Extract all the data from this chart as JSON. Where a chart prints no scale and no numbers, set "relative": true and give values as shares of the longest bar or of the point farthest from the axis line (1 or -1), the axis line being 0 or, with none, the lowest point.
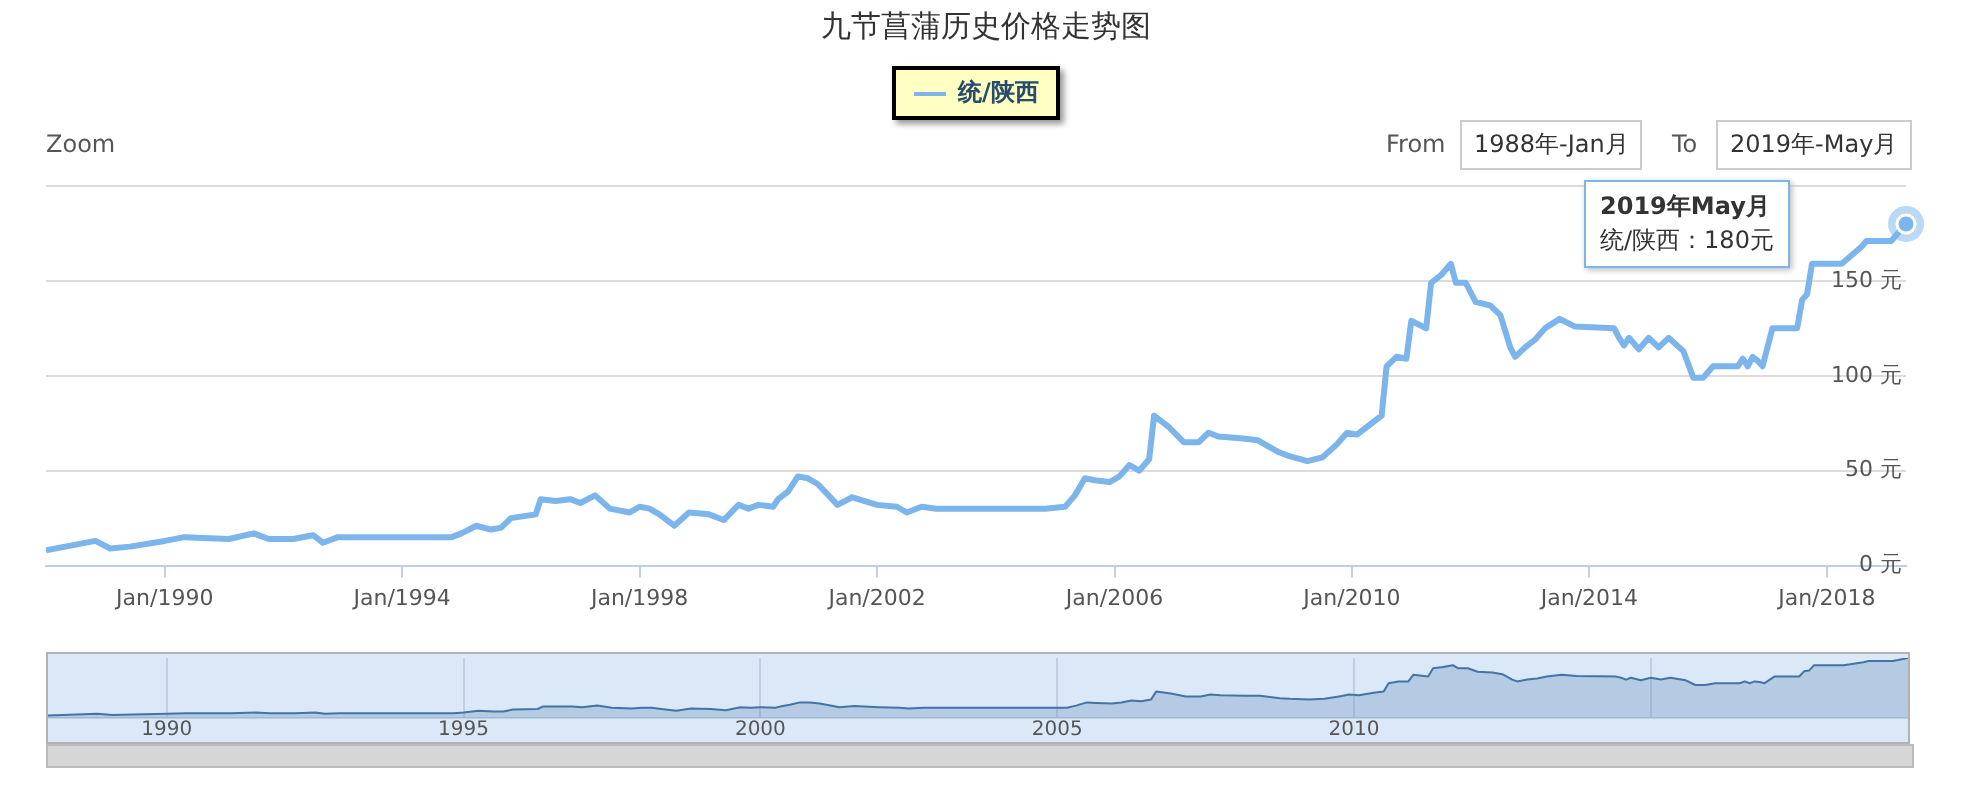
{
  "chart_data": [
    {
      "type": "line",
      "title": "九节菖蒲历史价格走势图",
      "legend": "top",
      "annotations": [
        "Zoom",
        "From",
        "1988年-Jan月",
        "To",
        "2019年-May月",
        "2019年May月",
        "统/陕西：180元"
      ],
      "x": [
        "1988-01",
        "1988-11",
        "1989-02",
        "1989-06",
        "1990-01",
        "1990-05",
        "1991-02",
        "1991-07",
        "1991-10",
        "1992-03",
        "1992-07",
        "1992-09",
        "1992-12",
        "1994-01",
        "1994-11",
        "1995-01",
        "1995-04",
        "1995-07",
        "1995-09",
        "1995-11",
        "1996-04",
        "1996-05",
        "1996-08",
        "1996-11",
        "1997-01",
        "1997-04",
        "1997-07",
        "1997-11",
        "1998-01",
        "1998-03",
        "1998-05",
        "1998-08",
        "1998-11",
        "1999-03",
        "1999-06",
        "1999-09",
        "1999-11",
        "2000-01",
        "2000-04",
        "2000-05",
        "2000-07",
        "2000-09",
        "2000-11",
        "2001-01",
        "2001-05",
        "2001-08",
        "2002-01",
        "2002-05",
        "2002-07",
        "2002-10",
        "2003-01",
        "2004-11",
        "2005-03",
        "2005-05",
        "2005-07",
        "2005-09",
        "2005-12",
        "2006-02",
        "2006-04",
        "2006-06",
        "2006-08",
        "2006-09",
        "2006-12",
        "2007-03",
        "2007-06",
        "2007-08",
        "2007-10",
        "2008-03",
        "2008-06",
        "2008-08",
        "2008-10",
        "2008-12",
        "2009-04",
        "2009-07",
        "2009-10",
        "2009-12",
        "2010-02",
        "2010-05",
        "2010-07",
        "2010-08",
        "2010-10",
        "2010-12",
        "2011-01",
        "2011-04",
        "2011-05",
        "2011-07",
        "2011-09",
        "2011-10",
        "2011-12",
        "2012-02",
        "2012-05",
        "2012-07",
        "2012-09",
        "2012-10",
        "2012-12",
        "2013-02",
        "2013-04",
        "2013-07",
        "2013-10",
        "2014-06",
        "2014-07",
        "2014-08",
        "2014-09",
        "2014-11",
        "2015-01",
        "2015-03",
        "2015-05",
        "2015-08",
        "2015-10",
        "2015-12",
        "2016-02",
        "2016-07",
        "2016-08",
        "2016-09",
        "2016-10",
        "2016-11",
        "2016-12",
        "2017-02",
        "2017-07",
        "2017-08",
        "2017-09",
        "2017-10",
        "2018-04",
        "2018-08",
        "2018-09",
        "2019-02",
        "2019-05"
      ],
      "series": [
        {
          "name": "统/陕西",
          "color": "#7cb5ec",
          "values": [
            8,
            13,
            9,
            10,
            13,
            15,
            14,
            17,
            14,
            14,
            16,
            12,
            15,
            15,
            15,
            17,
            21,
            19,
            20,
            25,
            27,
            35,
            34,
            35,
            33,
            37,
            30,
            28,
            31,
            30,
            27,
            21,
            28,
            27,
            24,
            32,
            30,
            32,
            31,
            35,
            39,
            47,
            46,
            43,
            32,
            36,
            32,
            31,
            28,
            31,
            30,
            30,
            31,
            37,
            46,
            45,
            44,
            47,
            53,
            50,
            56,
            79,
            73,
            65,
            65,
            70,
            68,
            67,
            66,
            63,
            60,
            58,
            55,
            57,
            64,
            70,
            69,
            75,
            79,
            105,
            110,
            109,
            129,
            125,
            149,
            153,
            159,
            149,
            149,
            139,
            137,
            132,
            115,
            110,
            115,
            119,
            125,
            130,
            126,
            125,
            120,
            116,
            120,
            114,
            120,
            115,
            120,
            113,
            99,
            99,
            105,
            105,
            109,
            105,
            110,
            108,
            105,
            125,
            125,
            140,
            143,
            159,
            159,
            168,
            171,
            171,
            180
          ]
        }
      ],
      "xlim": [
        "1988-01",
        "2019-05"
      ],
      "xticks": [
        {
          "value": "1990-01",
          "label": "Jan/1990"
        },
        {
          "value": "1994-01",
          "label": "Jan/1994"
        },
        {
          "value": "1998-01",
          "label": "Jan/1998"
        },
        {
          "value": "2002-01",
          "label": "Jan/2002"
        },
        {
          "value": "2006-01",
          "label": "Jan/2006"
        },
        {
          "value": "2010-01",
          "label": "Jan/2010"
        },
        {
          "value": "2014-01",
          "label": "Jan/2014"
        },
        {
          "value": "2018-01",
          "label": "Jan/2018"
        }
      ],
      "ylim": [
        0,
        200
      ],
      "yticks": [
        {
          "value": 0,
          "label": "0 元"
        },
        {
          "value": 50,
          "label": "50 元"
        },
        {
          "value": 100,
          "label": "100 元"
        },
        {
          "value": 150,
          "label": "150 元"
        },
        {
          "value": 200,
          "label": null
        }
      ],
      "grid": "y",
      "marker": "none",
      "line_style": "solid"
    },
    {
      "type": "area",
      "x": [
        "1988-01",
        "1988-11",
        "1989-02",
        "1989-06",
        "1990-01",
        "1990-05",
        "1991-02",
        "1991-07",
        "1991-10",
        "1992-03",
        "1992-07",
        "1992-09",
        "1992-12",
        "1994-01",
        "1994-11",
        "1995-01",
        "1995-04",
        "1995-07",
        "1995-09",
        "1995-11",
        "1996-04",
        "1996-05",
        "1996-08",
        "1996-11",
        "1997-01",
        "1997-04",
        "1997-07",
        "1997-11",
        "1998-01",
        "1998-03",
        "1998-05",
        "1998-08",
        "1998-11",
        "1999-03",
        "1999-06",
        "1999-09",
        "1999-11",
        "2000-01",
        "2000-04",
        "2000-05",
        "2000-07",
        "2000-09",
        "2000-11",
        "2001-01",
        "2001-05",
        "2001-08",
        "2002-01",
        "2002-05",
        "2002-07",
        "2002-10",
        "2003-01",
        "2004-11",
        "2005-03",
        "2005-05",
        "2005-07",
        "2005-09",
        "2005-12",
        "2006-02",
        "2006-04",
        "2006-06",
        "2006-08",
        "2006-09",
        "2006-12",
        "2007-03",
        "2007-06",
        "2007-08",
        "2007-10",
        "2008-03",
        "2008-06",
        "2008-08",
        "2008-10",
        "2008-12",
        "2009-04",
        "2009-07",
        "2009-10",
        "2009-12",
        "2010-02",
        "2010-05",
        "2010-07",
        "2010-08",
        "2010-10",
        "2010-12",
        "2011-01",
        "2011-04",
        "2011-05",
        "2011-07",
        "2011-09",
        "2011-10",
        "2011-12",
        "2012-02",
        "2012-05",
        "2012-07",
        "2012-09",
        "2012-10",
        "2012-12",
        "2013-02",
        "2013-04",
        "2013-07",
        "2013-10",
        "2014-06",
        "2014-07",
        "2014-08",
        "2014-09",
        "2014-11",
        "2015-01",
        "2015-03",
        "2015-05",
        "2015-08",
        "2015-10",
        "2015-12",
        "2016-02",
        "2016-07",
        "2016-08",
        "2016-09",
        "2016-10",
        "2016-11",
        "2016-12",
        "2017-02",
        "2017-07",
        "2017-08",
        "2017-09",
        "2017-10",
        "2018-04",
        "2018-08",
        "2018-09",
        "2019-02",
        "2019-05"
      ],
      "series": [
        {
          "color": "#4572a7",
          "values": [
            0.04,
            0.07,
            0.05,
            0.06,
            0.07,
            0.08,
            0.08,
            0.09,
            0.08,
            0.08,
            0.09,
            0.07,
            0.08,
            0.08,
            0.08,
            0.09,
            0.12,
            0.11,
            0.11,
            0.14,
            0.15,
            0.19,
            0.19,
            0.19,
            0.18,
            0.21,
            0.17,
            0.16,
            0.17,
            0.17,
            0.15,
            0.12,
            0.16,
            0.15,
            0.13,
            0.18,
            0.17,
            0.18,
            0.17,
            0.19,
            0.22,
            0.26,
            0.26,
            0.24,
            0.18,
            0.2,
            0.18,
            0.17,
            0.16,
            0.17,
            0.17,
            0.17,
            0.17,
            0.21,
            0.26,
            0.25,
            0.24,
            0.26,
            0.29,
            0.28,
            0.31,
            0.44,
            0.41,
            0.36,
            0.36,
            0.39,
            0.38,
            0.37,
            0.37,
            0.35,
            0.33,
            0.32,
            0.31,
            0.32,
            0.36,
            0.39,
            0.38,
            0.42,
            0.44,
            0.58,
            0.61,
            0.61,
            0.72,
            0.69,
            0.83,
            0.85,
            0.88,
            0.83,
            0.83,
            0.77,
            0.76,
            0.73,
            0.64,
            0.61,
            0.64,
            0.66,
            0.69,
            0.72,
            0.7,
            0.69,
            0.67,
            0.64,
            0.67,
            0.63,
            0.67,
            0.64,
            0.67,
            0.63,
            0.55,
            0.55,
            0.58,
            0.58,
            0.61,
            0.58,
            0.61,
            0.6,
            0.58,
            0.69,
            0.69,
            0.78,
            0.79,
            0.88,
            0.88,
            0.93,
            0.95,
            0.95,
            1
          ]
        }
      ],
      "xlim": [
        "1988-01",
        "2019-05"
      ],
      "xticks": [
        {
          "value": "1990-01",
          "label": "1990"
        },
        {
          "value": "1995-01",
          "label": "1995"
        },
        {
          "value": "2000-01",
          "label": "2000"
        },
        {
          "value": "2005-01",
          "label": "2005"
        },
        {
          "value": "2010-01",
          "label": "2010"
        },
        {
          "value": "2015-01",
          "label": null
        }
      ],
      "relative": true,
      "tick_labels": "x",
      "grid": "x"
    }
  ]
}
